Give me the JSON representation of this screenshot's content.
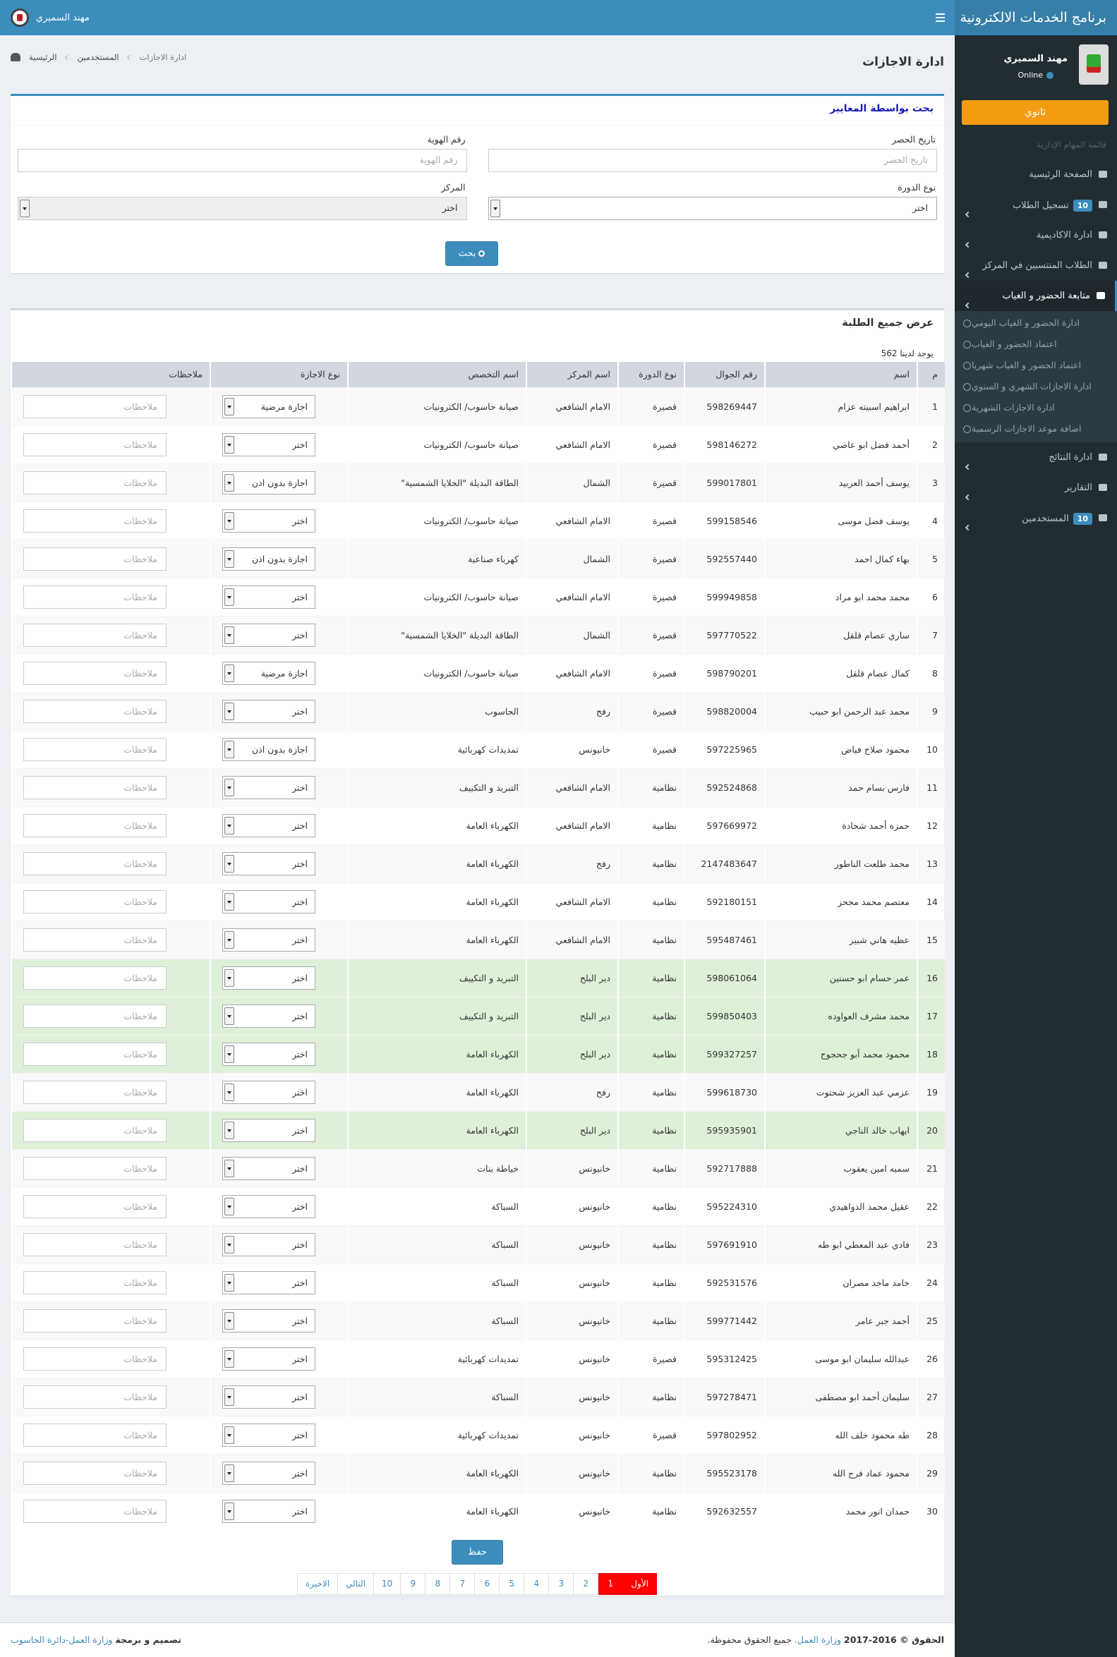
{
  "header": {
    "app_title": "برنامج الخدمات الالكترونية",
    "user_name": "مهند السميري"
  },
  "sidebar": {
    "user_name": "مهند السميري",
    "status": "Online",
    "role_button": "ثانوي",
    "section_title": "قائمة المهام الإدارية",
    "menu": [
      {
        "label": "الصفحة الرئيسية",
        "collapsible": false
      },
      {
        "label": "تسجيل الطلاب",
        "badge": "10",
        "collapsible": true
      },
      {
        "label": "ادارة الاكاديمية",
        "collapsible": true
      },
      {
        "label": "الطلاب المنتسبين في المركز",
        "collapsible": true
      },
      {
        "label": "متابعة الحضور و الغياب",
        "collapsible": true,
        "active": true,
        "submenu": [
          "ادارة الحضور و الغياب اليومي",
          "اعتماد الحضور و الغياب",
          "اعتماد الحضور و الغياب شهريا",
          "ادارة الاجازات الشهري و السنوي",
          "ادارة الاجازات الشهرية",
          "اضافة موعد الاجازات الرسمية"
        ]
      },
      {
        "label": "ادارة النتائج",
        "collapsible": true
      },
      {
        "label": "التقارير",
        "collapsible": true
      },
      {
        "label": "المستخدمين",
        "badge": "10",
        "collapsible": true
      }
    ]
  },
  "page": {
    "title": "ادارة الاجازات",
    "breadcrumb": [
      "الرئيسية",
      "المستخدمين",
      "ادارة الاجازات"
    ]
  },
  "search": {
    "title": "بحث بواسطة المعايير",
    "fields": [
      {
        "label": "تاريخ الحصر",
        "placeholder": "تاريخ الحصر",
        "kind": "input"
      },
      {
        "label": "رقم الهوية",
        "placeholder": "رقم الهوية",
        "kind": "input"
      },
      {
        "label": "نوع الدورة",
        "value": "اختر",
        "kind": "select"
      },
      {
        "label": "المركز",
        "value": "اختر",
        "kind": "select",
        "disabled": true
      }
    ],
    "button": "بحث"
  },
  "table": {
    "title": "عرض جميع الطلبة",
    "summary": "يوجد لدينا 562",
    "columns": [
      "م",
      "اسم",
      "رقم الجوال",
      "نوع الدورة",
      "اسم المركز",
      "اسم التخصص",
      "نوع الاجازة",
      "ملاحظات"
    ],
    "notes_placeholder": "ملاحظات",
    "rows": [
      {
        "cells": [
          "1",
          "ابراهيم اسبيته عزام",
          "598269447",
          "قصيرة",
          "الامام الشافعي",
          "صيانة حاسوب/ الكترونيات"
        ],
        "leave": "اجازة مرضية"
      },
      {
        "cells": [
          "2",
          "أحمد فضل ابو عاصي",
          "598146272",
          "قصيرة",
          "الامام الشافعي",
          "صيانة حاسوب/ الكترونيات"
        ],
        "leave": "اختر"
      },
      {
        "cells": [
          "3",
          "يوسف أحمد العربيد",
          "599017801",
          "قصيرة",
          "الشمال",
          "الطاقة البديلة \"الخلايا الشمسية\""
        ],
        "leave": "اجازة بدون اذن"
      },
      {
        "cells": [
          "4",
          "يوسف فضل موسى",
          "599158546",
          "قصيرة",
          "الامام الشافعي",
          "صيانة حاسوب/ الكترونيات"
        ],
        "leave": "اختر"
      },
      {
        "cells": [
          "5",
          "بهاء كمال احمد",
          "592557440",
          "قصيرة",
          "الشمال",
          "كهرباء صناعية"
        ],
        "leave": "اجازة بدون اذن"
      },
      {
        "cells": [
          "6",
          "محمد محمد ابو مراد",
          "599949858",
          "قصيرة",
          "الامام الشافعي",
          "صيانة حاسوب/ الكترونيات"
        ],
        "leave": "اختر"
      },
      {
        "cells": [
          "7",
          "ساري عصام قلقل",
          "597770522",
          "قصيرة",
          "الشمال",
          "الطاقة البديلة \"الخلايا الشمسية\""
        ],
        "leave": "اختر"
      },
      {
        "cells": [
          "8",
          "كمال عصام قلقل",
          "598790201",
          "قصيرة",
          "الامام الشافعي",
          "صيانة حاسوب/ الكترونيات"
        ],
        "leave": "اجازة مرضية"
      },
      {
        "cells": [
          "9",
          "محمد عبد الرحمن ابو حبيب",
          "598820004",
          "قصيرة",
          "رفح",
          "الحاسوب"
        ],
        "leave": "اختر"
      },
      {
        "cells": [
          "10",
          "محمود صلاح فياض",
          "597225965",
          "قصيرة",
          "خانيونس",
          "تمديدات كهربائية"
        ],
        "leave": "اجازة بدون اذن"
      },
      {
        "cells": [
          "11",
          "فارس بسام حمد",
          "592524868",
          "نظامية",
          "الامام الشافعي",
          "التبريد و التكييف"
        ],
        "leave": "اختر"
      },
      {
        "cells": [
          "12",
          "حمزه أحمد شحادة",
          "597669972",
          "نظامية",
          "الامام الشافعي",
          "الكهرباء العامة"
        ],
        "leave": "اختر"
      },
      {
        "cells": [
          "13",
          "محمد طلعت الناطور",
          "2147483647",
          "نظامية",
          "رفح",
          "الكهرباء العامة"
        ],
        "leave": "اختر"
      },
      {
        "cells": [
          "14",
          "معتصم محمد مجحز",
          "592180151",
          "نظامية",
          "الامام الشافعي",
          "الكهرباء العامة"
        ],
        "leave": "اختر"
      },
      {
        "cells": [
          "15",
          "عطيه هاني شبير",
          "595487461",
          "نظامية",
          "الامام الشافعي",
          "الكهرباء العامة"
        ],
        "leave": "اختر"
      },
      {
        "cells": [
          "16",
          "عمر حسام ابو حسنين",
          "598061064",
          "نظامية",
          "دير البلح",
          "التبريد و التكييف"
        ],
        "leave": "اختر",
        "highlighted": true
      },
      {
        "cells": [
          "17",
          "محمد مشرف العواوده",
          "599850403",
          "نظامية",
          "دير البلح",
          "التبريد و التكييف"
        ],
        "leave": "اختر",
        "highlighted": true
      },
      {
        "cells": [
          "18",
          "محمود محمد أبو جحجوح",
          "599327257",
          "نظامية",
          "دير البلح",
          "الكهرباء العامة"
        ],
        "leave": "اختر",
        "highlighted": true
      },
      {
        "cells": [
          "19",
          "عزمي عبد العزيز شحتوت",
          "599618730",
          "نظامية",
          "رفح",
          "الكهرباء العامة"
        ],
        "leave": "اختر"
      },
      {
        "cells": [
          "20",
          "ايهاب خالد الناجي",
          "595935901",
          "نظامية",
          "دير البلح",
          "الكهرباء العامة"
        ],
        "leave": "اختر",
        "highlighted": true
      },
      {
        "cells": [
          "21",
          "سميه امين يعقوب",
          "592717888",
          "نظامية",
          "خانيونس",
          "خياطة بنات"
        ],
        "leave": "اختر"
      },
      {
        "cells": [
          "22",
          "عقيل محمد الدواهيدي",
          "595224310",
          "نظامية",
          "خانيونس",
          "السباكة"
        ],
        "leave": "اختر"
      },
      {
        "cells": [
          "23",
          "فادي عبد المعطي ابو طه",
          "597691910",
          "نظامية",
          "خانيونس",
          "السباكة"
        ],
        "leave": "اختر"
      },
      {
        "cells": [
          "24",
          "حامد ماجد مصران",
          "592531576",
          "نظامية",
          "خانيونس",
          "السباكة"
        ],
        "leave": "اختر"
      },
      {
        "cells": [
          "25",
          "أحمد جبر عامر",
          "599771442",
          "نظامية",
          "خانيونس",
          "السباكة"
        ],
        "leave": "اختر"
      },
      {
        "cells": [
          "26",
          "عبدالله سليمان ابو موسى",
          "595312425",
          "قصيرة",
          "خانيونس",
          "تمديدات كهربائية"
        ],
        "leave": "اختر"
      },
      {
        "cells": [
          "27",
          "سليمان أحمد ابو مصطفى",
          "597278471",
          "نظامية",
          "خانيونس",
          "السباكة"
        ],
        "leave": "اختر"
      },
      {
        "cells": [
          "28",
          "طه محمود خلف الله",
          "597802952",
          "قصيرة",
          "خانيونس",
          "تمديدات كهربائية"
        ],
        "leave": "اختر"
      },
      {
        "cells": [
          "29",
          "محمود عماد فرج الله",
          "595523178",
          "نظامية",
          "خانيونس",
          "الكهرباء العامة"
        ],
        "leave": "اختر"
      },
      {
        "cells": [
          "30",
          "حمدان انور محمد",
          "592632557",
          "نظامية",
          "خانيونس",
          "الكهرباء العامة"
        ],
        "leave": "اختر"
      }
    ]
  },
  "save_button": "حفظ",
  "pagination": [
    {
      "label": "الأول",
      "active": true
    },
    {
      "label": "1",
      "active": true
    },
    {
      "label": "2"
    },
    {
      "label": "3"
    },
    {
      "label": "4"
    },
    {
      "label": "5"
    },
    {
      "label": "6"
    },
    {
      "label": "7"
    },
    {
      "label": "8"
    },
    {
      "label": "9"
    },
    {
      "label": "10"
    },
    {
      "label": "التالي"
    },
    {
      "label": "الاخيرة"
    }
  ],
  "footer": {
    "copyright": "الحقوق © 2016-2017",
    "org_link": "وزارة العمل.",
    "rights": "جميع الحقوق محفوظة.",
    "credit": "تصميم و برمجة",
    "credit_link": "وزارة العمل-دائرة الحاسوب"
  }
}
